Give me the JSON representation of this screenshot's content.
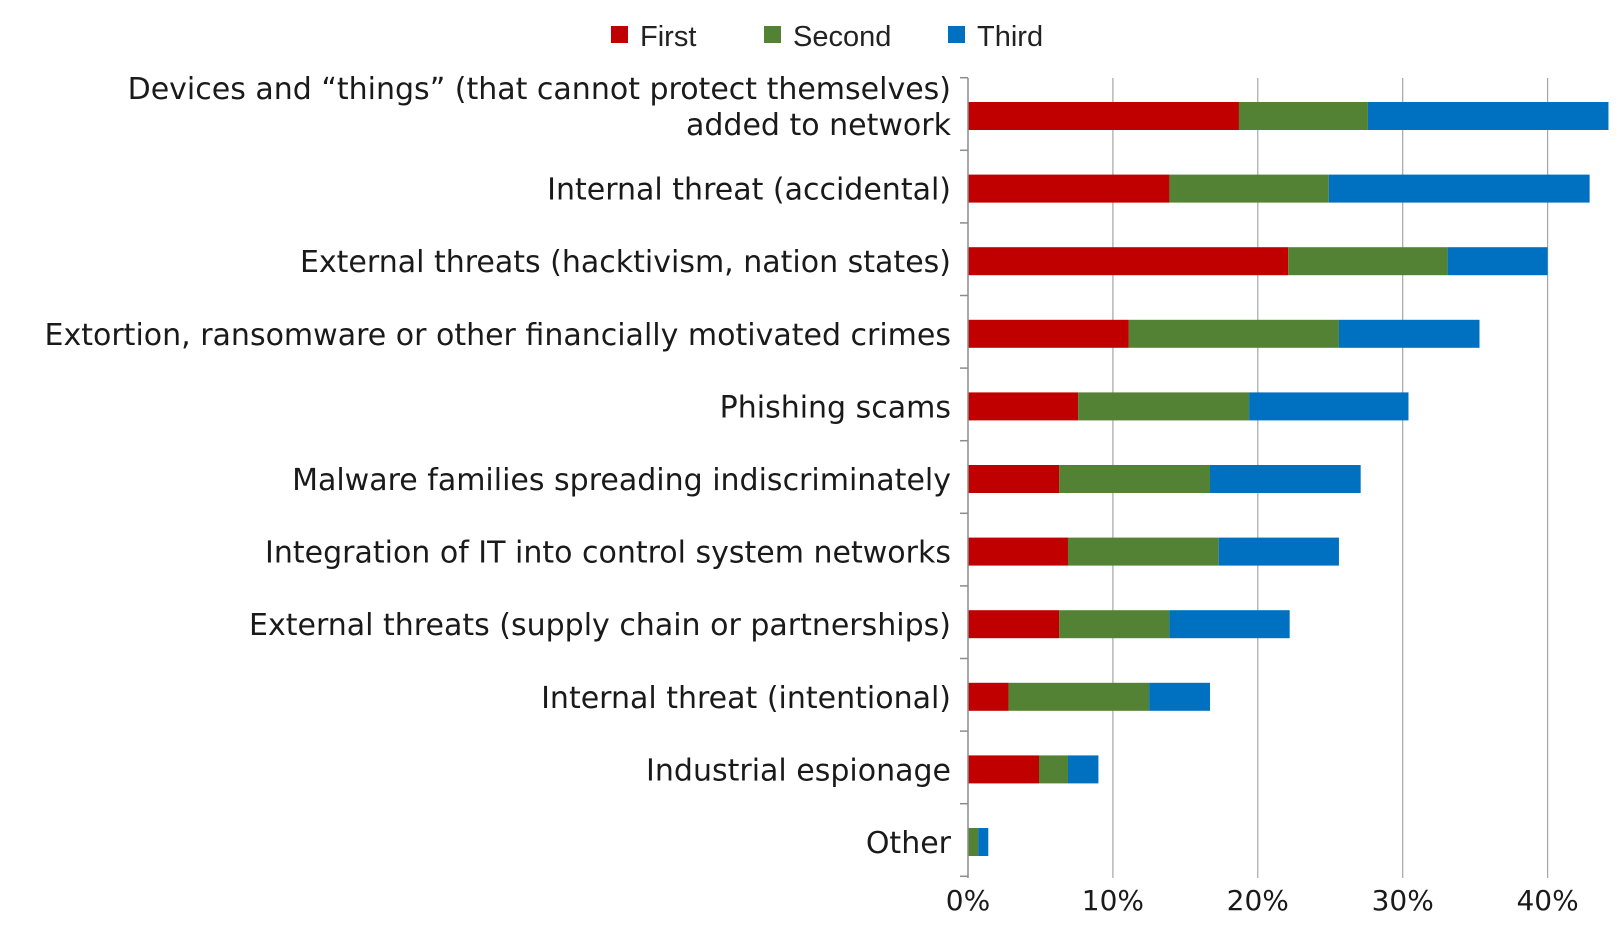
{
  "chart_data": {
    "type": "bar",
    "orientation": "horizontal",
    "stacked": true,
    "title": "",
    "xlabel": "",
    "ylabel": "",
    "xlim": [
      0,
      45
    ],
    "x_ticks": [
      0,
      10,
      20,
      30,
      40
    ],
    "x_tick_labels": [
      "0%",
      "10%",
      "20%",
      "30%",
      "40%"
    ],
    "grid": true,
    "legend_position": "top",
    "categories": [
      [
        "Devices and “things” (that cannot protect themselves)",
        "added to network"
      ],
      [
        "Internal threat (accidental)"
      ],
      [
        "External threats (hacktivism, nation states)"
      ],
      [
        "Extortion, ransomware or other financially motivated crimes"
      ],
      [
        "Phishing scams"
      ],
      [
        "Malware families spreading indiscriminately"
      ],
      [
        "Integration of IT into control system networks"
      ],
      [
        "External threats (supply chain or partnerships)"
      ],
      [
        "Internal threat (intentional)"
      ],
      [
        "Industrial espionage"
      ],
      [
        "Other"
      ]
    ],
    "series": [
      {
        "name": "First",
        "color": "#c00000",
        "values": [
          18.7,
          13.9,
          22.1,
          11.1,
          7.6,
          6.3,
          6.9,
          6.3,
          2.8,
          4.9,
          0.0
        ]
      },
      {
        "name": "Second",
        "color": "#548235",
        "values": [
          8.9,
          11.0,
          11.0,
          14.5,
          11.8,
          10.4,
          10.4,
          7.6,
          9.7,
          2.0,
          0.7
        ]
      },
      {
        "name": "Third",
        "color": "#0070c0",
        "values": [
          16.6,
          18.0,
          6.9,
          9.7,
          11.0,
          10.4,
          8.3,
          8.3,
          4.2,
          2.1,
          0.7
        ]
      }
    ]
  }
}
